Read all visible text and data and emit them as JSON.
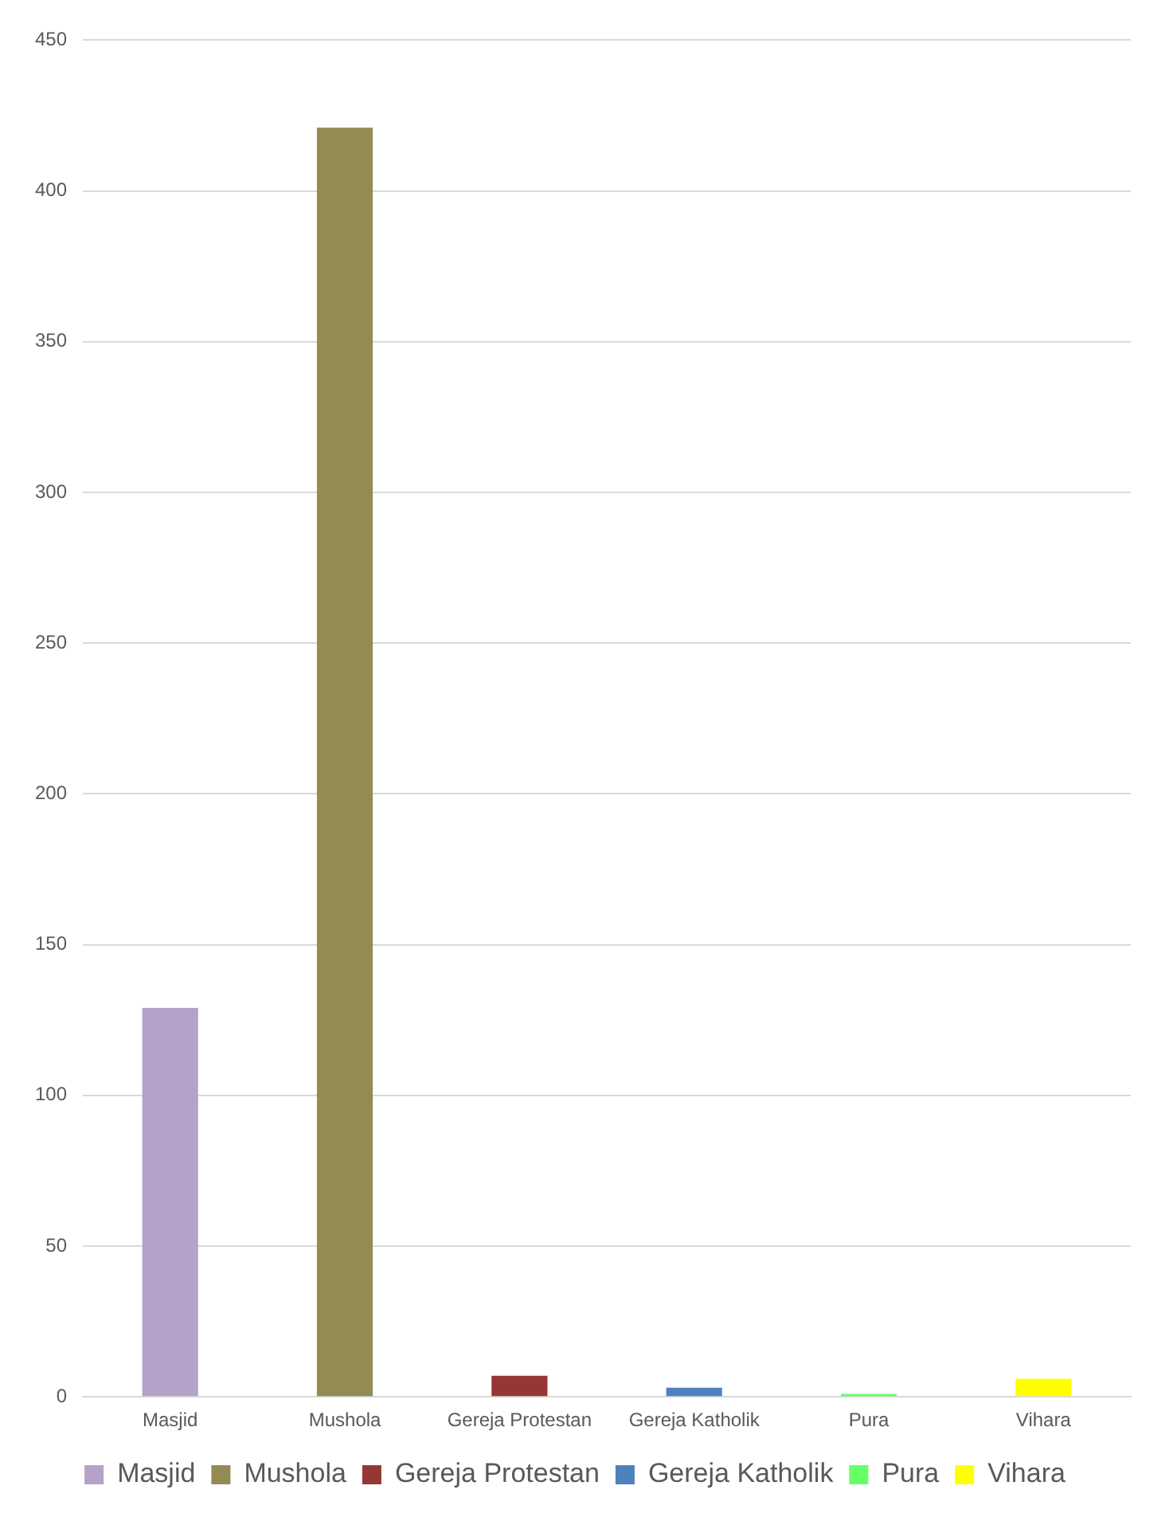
{
  "chart_data": {
    "type": "bar",
    "categories": [
      "Masjid",
      "Mushola",
      "Gereja Protestan",
      "Gereja Katholik",
      "Pura",
      "Vihara"
    ],
    "series": [
      {
        "name": "Masjid",
        "color": "#b4a2c8",
        "values": [
          129,
          null,
          null,
          null,
          null,
          null
        ]
      },
      {
        "name": "Mushola",
        "color": "#948a54",
        "values": [
          null,
          421,
          null,
          null,
          null,
          null
        ]
      },
      {
        "name": "Gereja Protestan",
        "color": "#953735",
        "values": [
          null,
          null,
          7,
          null,
          null,
          null
        ]
      },
      {
        "name": "Gereja Katholik",
        "color": "#4f81bd",
        "values": [
          null,
          null,
          null,
          3,
          null,
          null
        ]
      },
      {
        "name": "Pura",
        "color": "#66ff66",
        "values": [
          null,
          null,
          null,
          null,
          1,
          null
        ]
      },
      {
        "name": "Vihara",
        "color": "#ffff00",
        "values": [
          null,
          null,
          null,
          null,
          null,
          6
        ]
      }
    ],
    "ylim": [
      0,
      450
    ],
    "yticks": [
      0,
      50,
      100,
      150,
      200,
      250,
      300,
      350,
      400,
      450
    ],
    "grid": "y",
    "legend": "bottom"
  }
}
